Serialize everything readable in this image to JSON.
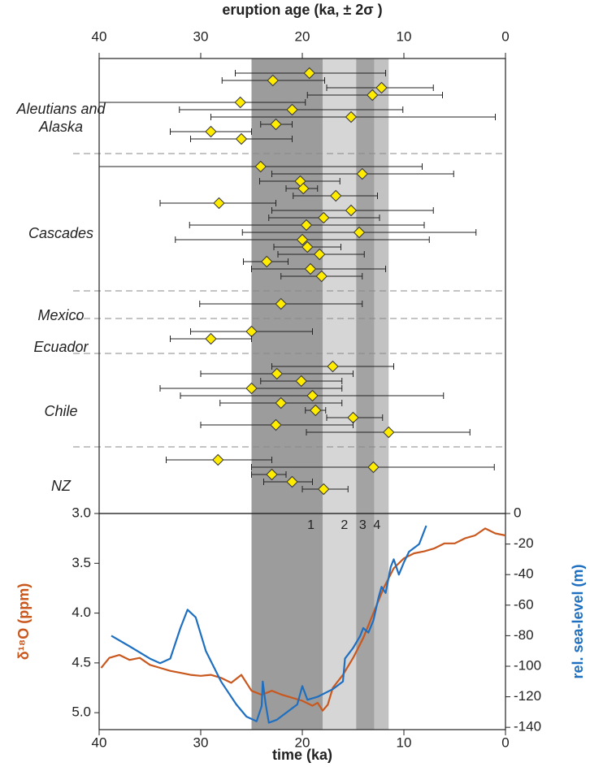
{
  "chart_data": [
    {
      "type": "dot",
      "xlabel": "eruption age (ka, ± 2σ )",
      "xlim": [
        40,
        0
      ],
      "xticks": [
        40,
        30,
        20,
        10,
        0
      ],
      "color": "#ffec00",
      "bands": [
        {
          "from": 25,
          "to": 18,
          "label": "1",
          "color": "#9c9c9c"
        },
        {
          "from": 18,
          "to": 14.7,
          "label": "2",
          "color": "#d6d6d6"
        },
        {
          "from": 14.7,
          "to": 12.9,
          "label": "3",
          "color": "#a3a3a3"
        },
        {
          "from": 12.9,
          "to": 11.5,
          "label": "4",
          "color": "#c2c2c2"
        }
      ],
      "groups": [
        {
          "name": "Aleutians and Alaska",
          "ages": [
            19.3,
            22.9,
            12.2,
            13.1,
            26.1,
            21.0,
            15.2,
            22.6,
            29.0,
            26.0
          ],
          "age_min": [
            26.6,
            27.9,
            17.6,
            19.5,
            40.0,
            32.1,
            29.0,
            24.1,
            33.0,
            31.0
          ],
          "age_max": [
            11.8,
            17.8,
            7.1,
            6.2,
            19.7,
            10.1,
            1.0,
            21.0,
            25.0,
            21.0
          ]
        },
        {
          "name": "Cascades",
          "ages": [
            24.1,
            14.1,
            20.2,
            19.9,
            16.7,
            28.2,
            15.2,
            17.9,
            19.6,
            14.4,
            20.0,
            19.5,
            18.3,
            23.5,
            19.2,
            18.1
          ],
          "age_min": [
            40.0,
            23.0,
            24.2,
            21.6,
            20.9,
            34.0,
            23.0,
            23.3,
            31.1,
            25.9,
            32.5,
            22.8,
            22.4,
            25.8,
            25.0,
            22.1
          ],
          "age_max": [
            8.2,
            5.1,
            16.3,
            18.5,
            12.6,
            22.6,
            7.1,
            12.4,
            8.0,
            2.9,
            7.5,
            16.2,
            13.9,
            21.4,
            11.8,
            14.1
          ]
        },
        {
          "name": "Mexico",
          "ages": [
            22.1
          ],
          "age_min": [
            30.1
          ],
          "age_max": [
            14.1
          ]
        },
        {
          "name": "Ecuador",
          "ages": [
            25.0,
            29.0
          ],
          "age_min": [
            31.0,
            33.0
          ],
          "age_max": [
            19.0,
            25.0
          ]
        },
        {
          "name": "Chile",
          "ages": [
            17.0,
            22.5,
            20.1,
            25.0,
            19.0,
            22.1,
            18.7,
            15.0,
            22.6,
            11.5
          ],
          "age_min": [
            23.0,
            30.0,
            24.1,
            34.0,
            32.0,
            28.1,
            19.7,
            17.6,
            30.0,
            19.6
          ],
          "age_max": [
            11.0,
            15.0,
            16.1,
            16.1,
            6.1,
            16.1,
            17.7,
            12.1,
            15.0,
            3.5
          ]
        },
        {
          "name": "NZ",
          "ages": [
            28.3,
            13.0,
            23.0,
            21.0,
            17.9
          ],
          "age_min": [
            33.4,
            25.0,
            25.0,
            23.8,
            20.0
          ],
          "age_max": [
            23.0,
            1.1,
            21.6,
            19.0,
            15.5
          ]
        }
      ]
    },
    {
      "type": "line",
      "xlabel": "time (ka)",
      "ylabel": "δ¹⁸O (ppm)",
      "y2label": "rel. sea-level (m)",
      "xlim": [
        40,
        0
      ],
      "xticks": [
        40,
        30,
        20,
        10,
        0
      ],
      "ylim": [
        3.0,
        5.17
      ],
      "yticks": [
        {
          "value": 3,
          "label": "3.0"
        },
        3.5,
        {
          "value": 4,
          "label": "4.0"
        },
        4.5,
        {
          "value": 5,
          "label": "5.0"
        }
      ],
      "y2lim": [
        0,
        -141.5
      ],
      "y2ticks": [
        0,
        -20,
        -40,
        -60,
        -80,
        -100,
        -120,
        -140
      ],
      "series": [
        {
          "color": "#c9581f",
          "axis": "y",
          "x": [
            39.8,
            39,
            38,
            37,
            36,
            35,
            34,
            33,
            32,
            31,
            30,
            29,
            28,
            27,
            26,
            25,
            24,
            23,
            22,
            21,
            20,
            19,
            18.5,
            18,
            17.5,
            17,
            16,
            15,
            14,
            13,
            12,
            11,
            10,
            9,
            8,
            7,
            6,
            5,
            4,
            3,
            2,
            1,
            0
          ],
          "values": [
            4.55,
            4.45,
            4.42,
            4.47,
            4.45,
            4.52,
            4.55,
            4.58,
            4.6,
            4.62,
            4.63,
            4.62,
            4.65,
            4.7,
            4.62,
            4.78,
            4.82,
            4.78,
            4.82,
            4.85,
            4.88,
            4.93,
            4.9,
            4.98,
            4.92,
            4.75,
            4.62,
            4.45,
            4.25,
            4.0,
            3.75,
            3.55,
            3.45,
            3.4,
            3.38,
            3.35,
            3.3,
            3.3,
            3.25,
            3.22,
            3.15,
            3.2,
            3.22
          ]
        },
        {
          "color": "#1f6fc0",
          "axis": "y2",
          "x": [
            38.8,
            37,
            35,
            34,
            33,
            32,
            31.3,
            30.5,
            29.5,
            28,
            26.5,
            25.5,
            24.5,
            24,
            23.9,
            23.6,
            23.3,
            22.5,
            21.5,
            20.5,
            20,
            19.5,
            18.5,
            17,
            16,
            15.8,
            15,
            14.3,
            14,
            13.5,
            13,
            12.5,
            12.2,
            11.8,
            11.3,
            11,
            10.5,
            10,
            9.5,
            8.5,
            7.8
          ],
          "values": [
            -80,
            -87,
            -95,
            -98,
            -95,
            -75,
            -63,
            -68,
            -90,
            -110,
            -125,
            -133,
            -136,
            -126,
            -110,
            -125,
            -137,
            -135,
            -130,
            -125,
            -113,
            -122,
            -120,
            -115,
            -110,
            -95,
            -88,
            -80,
            -75,
            -78,
            -70,
            -55,
            -48,
            -52,
            -35,
            -30,
            -40,
            -32,
            -25,
            -20,
            -8
          ]
        }
      ]
    }
  ]
}
